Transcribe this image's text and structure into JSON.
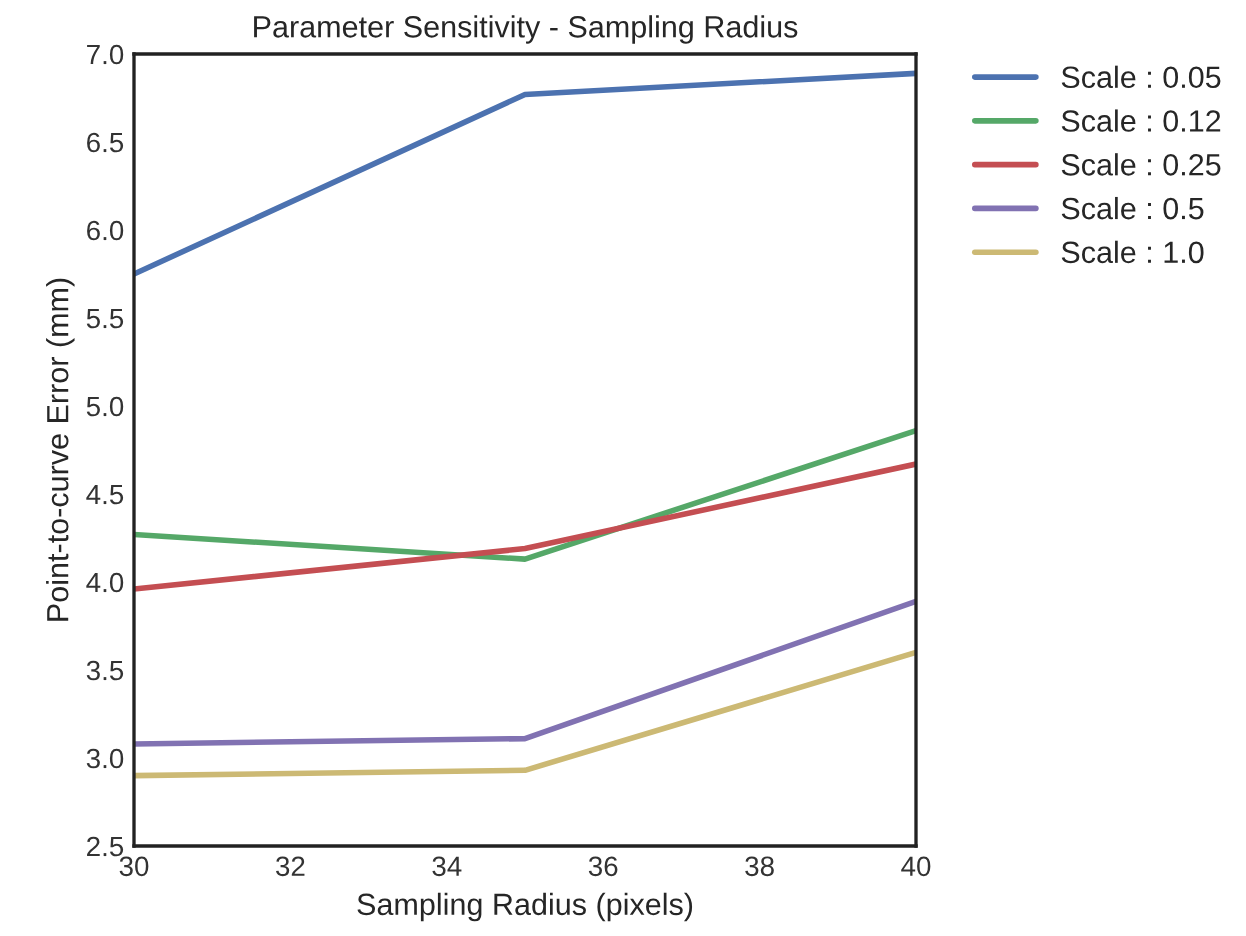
{
  "chart_data": {
    "type": "line",
    "title": "Parameter Sensitivity - Sampling Radius",
    "xlabel": "Sampling Radius (pixels)",
    "ylabel": "Point-to-curve Error (mm)",
    "x": [
      30,
      35,
      40
    ],
    "series": [
      {
        "name": "Scale : 0.05",
        "color": "#4c72b0",
        "values": [
          5.75,
          6.77,
          6.89
        ]
      },
      {
        "name": "Scale : 0.12",
        "color": "#55a868",
        "values": [
          4.27,
          4.13,
          4.86
        ]
      },
      {
        "name": "Scale : 0.25",
        "color": "#c44e52",
        "values": [
          3.96,
          4.19,
          4.67
        ]
      },
      {
        "name": "Scale : 0.5",
        "color": "#8172b2",
        "values": [
          3.08,
          3.11,
          3.89
        ]
      },
      {
        "name": "Scale : 1.0",
        "color": "#ccb974",
        "values": [
          2.9,
          2.93,
          3.6
        ]
      }
    ],
    "xlim": [
      30,
      40
    ],
    "xticks": [
      30,
      32,
      34,
      36,
      38,
      40
    ],
    "ylim": [
      2.5,
      7.0
    ],
    "yticks": [
      {
        "value": 2.5,
        "label": "2.5"
      },
      {
        "value": 3.0,
        "label": "3.0"
      },
      {
        "value": 3.5,
        "label": "3.5"
      },
      {
        "value": 4.0,
        "label": "4.0"
      },
      {
        "value": 4.5,
        "label": "4.5"
      },
      {
        "value": 5.0,
        "label": "5.0"
      },
      {
        "value": 5.5,
        "label": "5.5"
      },
      {
        "value": 6.0,
        "label": "6.0"
      },
      {
        "value": 6.5,
        "label": "6.5"
      },
      {
        "value": 7.0,
        "label": "7.0"
      }
    ],
    "grid": false,
    "legend": "top right",
    "line_style": "solid",
    "marker": "none"
  }
}
